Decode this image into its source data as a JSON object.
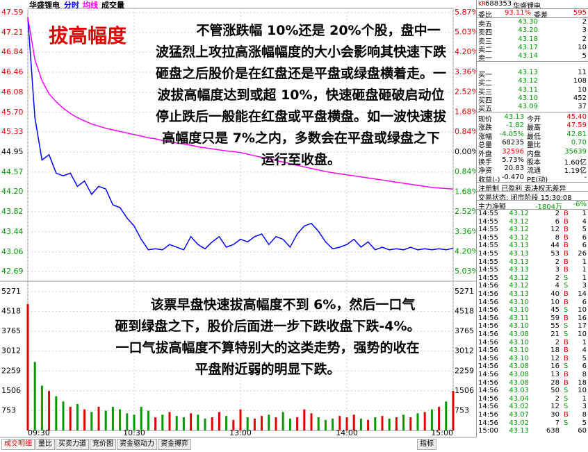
{
  "chart_data": [
    {
      "type": "line",
      "title": "华盛锂电",
      "x": [
        0,
        4,
        8,
        12,
        16,
        20,
        24,
        28,
        32,
        36,
        40,
        44,
        48,
        52,
        56,
        60,
        64,
        68,
        72,
        76,
        80,
        84,
        88,
        92,
        96,
        100,
        104,
        108,
        112,
        116,
        120,
        124,
        128,
        132,
        136,
        140,
        144,
        148,
        152,
        156,
        160,
        164,
        168,
        172,
        176,
        180,
        184,
        188,
        192,
        196,
        200,
        204,
        208,
        212,
        216,
        220,
        224,
        228,
        232,
        236,
        240
      ],
      "xlim": [
        0,
        240
      ],
      "series": [
        {
          "name": "分时",
          "color": "#0000ff",
          "values": [
            47.5,
            45.6,
            44.8,
            44.9,
            44.55,
            44.5,
            44.55,
            44.3,
            44.4,
            44.15,
            44.3,
            44.25,
            43.95,
            43.9,
            43.7,
            43.55,
            43.3,
            43.1,
            43.12,
            43.1,
            43.2,
            43.15,
            43.1,
            43.35,
            43.2,
            43.12,
            43.25,
            43.35,
            43.15,
            43.2,
            43.3,
            43.25,
            43.35,
            43.4,
            43.2,
            43.35,
            43.3,
            43.15,
            43.4,
            43.55,
            43.6,
            43.45,
            43.25,
            43.12,
            43.15,
            43.2,
            43.3,
            43.15,
            43.25,
            43.1,
            43.15,
            43.1,
            43.12,
            43.1,
            43.15,
            43.1,
            43.12,
            43.1,
            43.12,
            43.1,
            43.13
          ]
        },
        {
          "name": "均线",
          "color": "#ff00ff",
          "values": [
            47.5,
            46.7,
            46.3,
            46.05,
            45.9,
            45.78,
            45.68,
            45.6,
            45.54,
            45.48,
            45.44,
            45.4,
            45.37,
            45.34,
            45.31,
            45.28,
            45.25,
            45.22,
            45.2,
            45.17,
            45.15,
            45.12,
            45.1,
            45.08,
            45.05,
            45.03,
            45.01,
            44.99,
            44.97,
            44.96,
            44.94,
            44.91,
            44.88,
            44.85,
            44.82,
            44.79,
            44.76,
            44.73,
            44.7,
            44.67,
            44.64,
            44.61,
            44.58,
            44.56,
            44.54,
            44.52,
            44.5,
            44.48,
            44.46,
            44.44,
            44.42,
            44.4,
            44.38,
            44.36,
            44.34,
            44.32,
            44.3,
            44.28,
            44.27,
            44.26,
            44.25
          ]
        }
      ],
      "ylim": [
        42.69,
        47.59
      ],
      "yticks": [
        47.59,
        47.21,
        46.84,
        46.46,
        46.08,
        {
          "value": 45.7,
          "label": "45.70"
        },
        45.33,
        44.95,
        44.57,
        {
          "value": 44.2,
          "label": "44.20"
        },
        43.82,
        43.44,
        43.06,
        42.69
      ],
      "y2lim": [
        -5.03,
        5.87
      ],
      "y2ticks": [
        {
          "value": 5.87,
          "label": "5.87%"
        },
        {
          "value": 5.03,
          "label": "5.03%"
        },
        {
          "value": 4.2,
          "label": "4.20%"
        },
        {
          "value": 3.36,
          "label": "3.36%"
        },
        {
          "value": 2.52,
          "label": "2.52%"
        },
        {
          "value": 1.68,
          "label": "1.68%"
        },
        {
          "value": 0.84,
          "label": "0.84%"
        },
        {
          "value": 0,
          "label": "0.00%"
        },
        {
          "value": -0.84,
          "label": "0.84%"
        },
        {
          "value": -1.68,
          "label": "1.68%"
        },
        {
          "value": -2.52,
          "label": "2.52%"
        },
        {
          "value": -3.36,
          "label": "3.36%"
        },
        {
          "value": -4.2,
          "label": "4.20%"
        },
        {
          "value": -5.03,
          "label": "5.03%"
        }
      ],
      "grid": true
    },
    {
      "type": "bar",
      "title": "成交量",
      "x": [
        0,
        4,
        8,
        12,
        16,
        20,
        24,
        28,
        32,
        36,
        40,
        44,
        48,
        52,
        56,
        60,
        64,
        68,
        72,
        76,
        80,
        84,
        88,
        92,
        96,
        100,
        104,
        108,
        112,
        116,
        120,
        124,
        128,
        132,
        136,
        140,
        144,
        148,
        152,
        156,
        160,
        164,
        168,
        172,
        176,
        180,
        184,
        188,
        192,
        196,
        200,
        204,
        208,
        212,
        216,
        220,
        224,
        228,
        232,
        236,
        240
      ],
      "values": [
        4800,
        2600,
        1700,
        1500,
        1300,
        1100,
        900,
        1000,
        800,
        700,
        900,
        750,
        900,
        800,
        650,
        600,
        900,
        750,
        500,
        600,
        700,
        550,
        500,
        650,
        600,
        450,
        500,
        700,
        550,
        400,
        800,
        500,
        450,
        550,
        600,
        500,
        700,
        450,
        500,
        800,
        650,
        500,
        400,
        450,
        550,
        500,
        600,
        450,
        400,
        500,
        550,
        450,
        500,
        600,
        500,
        650,
        700,
        800,
        900,
        1100,
        1500
      ],
      "up_color": "#e00000",
      "down_color": "#009a00",
      "xlim": [
        0,
        240
      ],
      "xticks": [
        {
          "value": 0,
          "label": "09:30"
        },
        {
          "value": 60,
          "label": "10:30"
        },
        {
          "value": 120,
          "label": "13:00"
        },
        {
          "value": 180,
          "label": "14:00"
        },
        {
          "value": 240,
          "label": "15:00"
        }
      ],
      "ylim": [
        0,
        5271
      ],
      "yticks": [
        5271,
        4518,
        3765,
        3012,
        2259,
        1506,
        753
      ],
      "grid": true
    }
  ],
  "annotations": {
    "title": "拔高幅度",
    "text1": "不管涨跌幅 10%还是 20%个股，盘中一波猛烈上攻拉高涨幅幅度的大小会影响其快速下跌砸盘之后股价是在红盘还是平盘或绿盘横着走。一波拔高幅度达到或超 10%，快速砸盘砸破启动位停止跌后一般能在红盘或平盘横盘。如一波快速拔高幅度只是 7%之内，多数会在平盘或绿盘之下运行至收盘。",
    "text2": "该票早盘快速拔高幅度不到 6%，然后一口气砸到绿盘之下，股价后面进一步下跌收盘下跌-4%。一口气拔高幅度不算特别大的这类走势，强势的收在平盘附近弱的明显下跌。"
  },
  "quote_panel": {
    "code_prefix": "KR",
    "code": "688353",
    "name": "华盛锂电",
    "ratio_label": "委比",
    "ratio": "93.11%",
    "diff_label": "委差",
    "diff": "595",
    "asks": [
      [
        "卖五",
        "43.30",
        "2"
      ],
      [
        "卖四",
        "43.20",
        "3"
      ],
      [
        "卖三",
        "43.18",
        "2"
      ],
      [
        "卖二",
        "43.17",
        "10"
      ],
      [
        "卖一",
        "43.14",
        "5"
      ]
    ],
    "bids": [
      [
        "买一",
        "43.13",
        "11"
      ],
      [
        "买二",
        "43.12",
        "108"
      ],
      [
        "买三",
        "43.11",
        "10"
      ],
      [
        "买四",
        "43.10",
        "452"
      ],
      [
        "买五",
        "43.09",
        "37"
      ]
    ],
    "stats": [
      [
        "现价",
        "43.13",
        "今开",
        "45.40"
      ],
      [
        "涨跌",
        "-1.82",
        "最高",
        "47.59"
      ],
      [
        "涨幅",
        "-4.05%",
        "最低",
        "42.81"
      ],
      [
        "总量",
        "68235",
        "量比",
        "0.70"
      ],
      [
        "外盘",
        "32596",
        "内盘",
        "35639"
      ],
      [
        "换手",
        "5.73%",
        "股本",
        "1.60亿"
      ],
      [
        "净资",
        "20.83",
        "流通",
        "1.19亿"
      ],
      [
        "收益(-)",
        "-0.470",
        "PE(动)",
        "-"
      ]
    ],
    "tags": "注册制 已盈利 表决权无差异",
    "status": "交易状态: 闭市阶段 15:30:08",
    "main_flow": [
      "主力净额",
      "-1804万",
      "-6%"
    ],
    "trades": [
      [
        "14:55",
        "43.12",
        "2",
        "B",
        "1"
      ],
      [
        "14:55",
        "43.12",
        "6",
        "B",
        "4"
      ],
      [
        "14:55",
        "43.12",
        "12",
        "B",
        "5"
      ],
      [
        "14:55",
        "43.12",
        "8",
        "B",
        "6"
      ],
      [
        "14:55",
        "43.13",
        "44",
        "B",
        "6"
      ],
      [
        "14:55",
        "43.13",
        "53",
        "B",
        "26"
      ],
      [
        "14:55",
        "43.13",
        "2",
        "B",
        "1"
      ],
      [
        "14:55",
        "43.13",
        "3",
        "B",
        "1"
      ],
      [
        "14:55",
        "43.12",
        "2",
        "S",
        "1"
      ],
      [
        "14:56",
        "43.12",
        "4",
        "S",
        "3"
      ],
      [
        "14:56",
        "43.13",
        "40",
        "B",
        "14"
      ],
      [
        "14:56",
        "43.10",
        "10",
        "B",
        "6"
      ],
      [
        "14:56",
        "43.10",
        "45",
        "S",
        "10"
      ],
      [
        "14:56",
        "43.11",
        "59",
        "B",
        "16"
      ],
      [
        "14:56",
        "43.10",
        "55",
        "S",
        "17"
      ],
      [
        "14:56",
        "43.08",
        "21",
        "S",
        "10"
      ],
      [
        "14:56",
        "43.10",
        "2",
        "B",
        "1"
      ],
      [
        "14:56",
        "43.10",
        "18",
        "B",
        "4"
      ],
      [
        "14:56",
        "43.10",
        "12",
        "B",
        "5"
      ],
      [
        "14:56",
        "43.08",
        "16",
        "S",
        "6"
      ],
      [
        "14:56",
        "43.08",
        "13",
        "B",
        "8"
      ],
      [
        "14:56",
        "43.08",
        "28",
        "B",
        "18"
      ],
      [
        "14:56",
        "43.03",
        "50",
        "S",
        "10"
      ],
      [
        "14:56",
        "43.04",
        "2",
        "S",
        "1"
      ],
      [
        "14:56",
        "43.02",
        "12",
        "S",
        "3"
      ],
      [
        "14:56",
        "43.07",
        "30",
        "B",
        "8"
      ],
      [
        "14:56",
        "43.02",
        "7",
        "S",
        "5"
      ],
      [
        "15:00",
        "43.13",
        "638",
        "",
        "60"
      ]
    ]
  },
  "tabs": [
    "成交明细",
    "量比",
    "买卖力道",
    "竞价图",
    "资金驱动力",
    "资金搏弈"
  ],
  "indicator": "指标"
}
